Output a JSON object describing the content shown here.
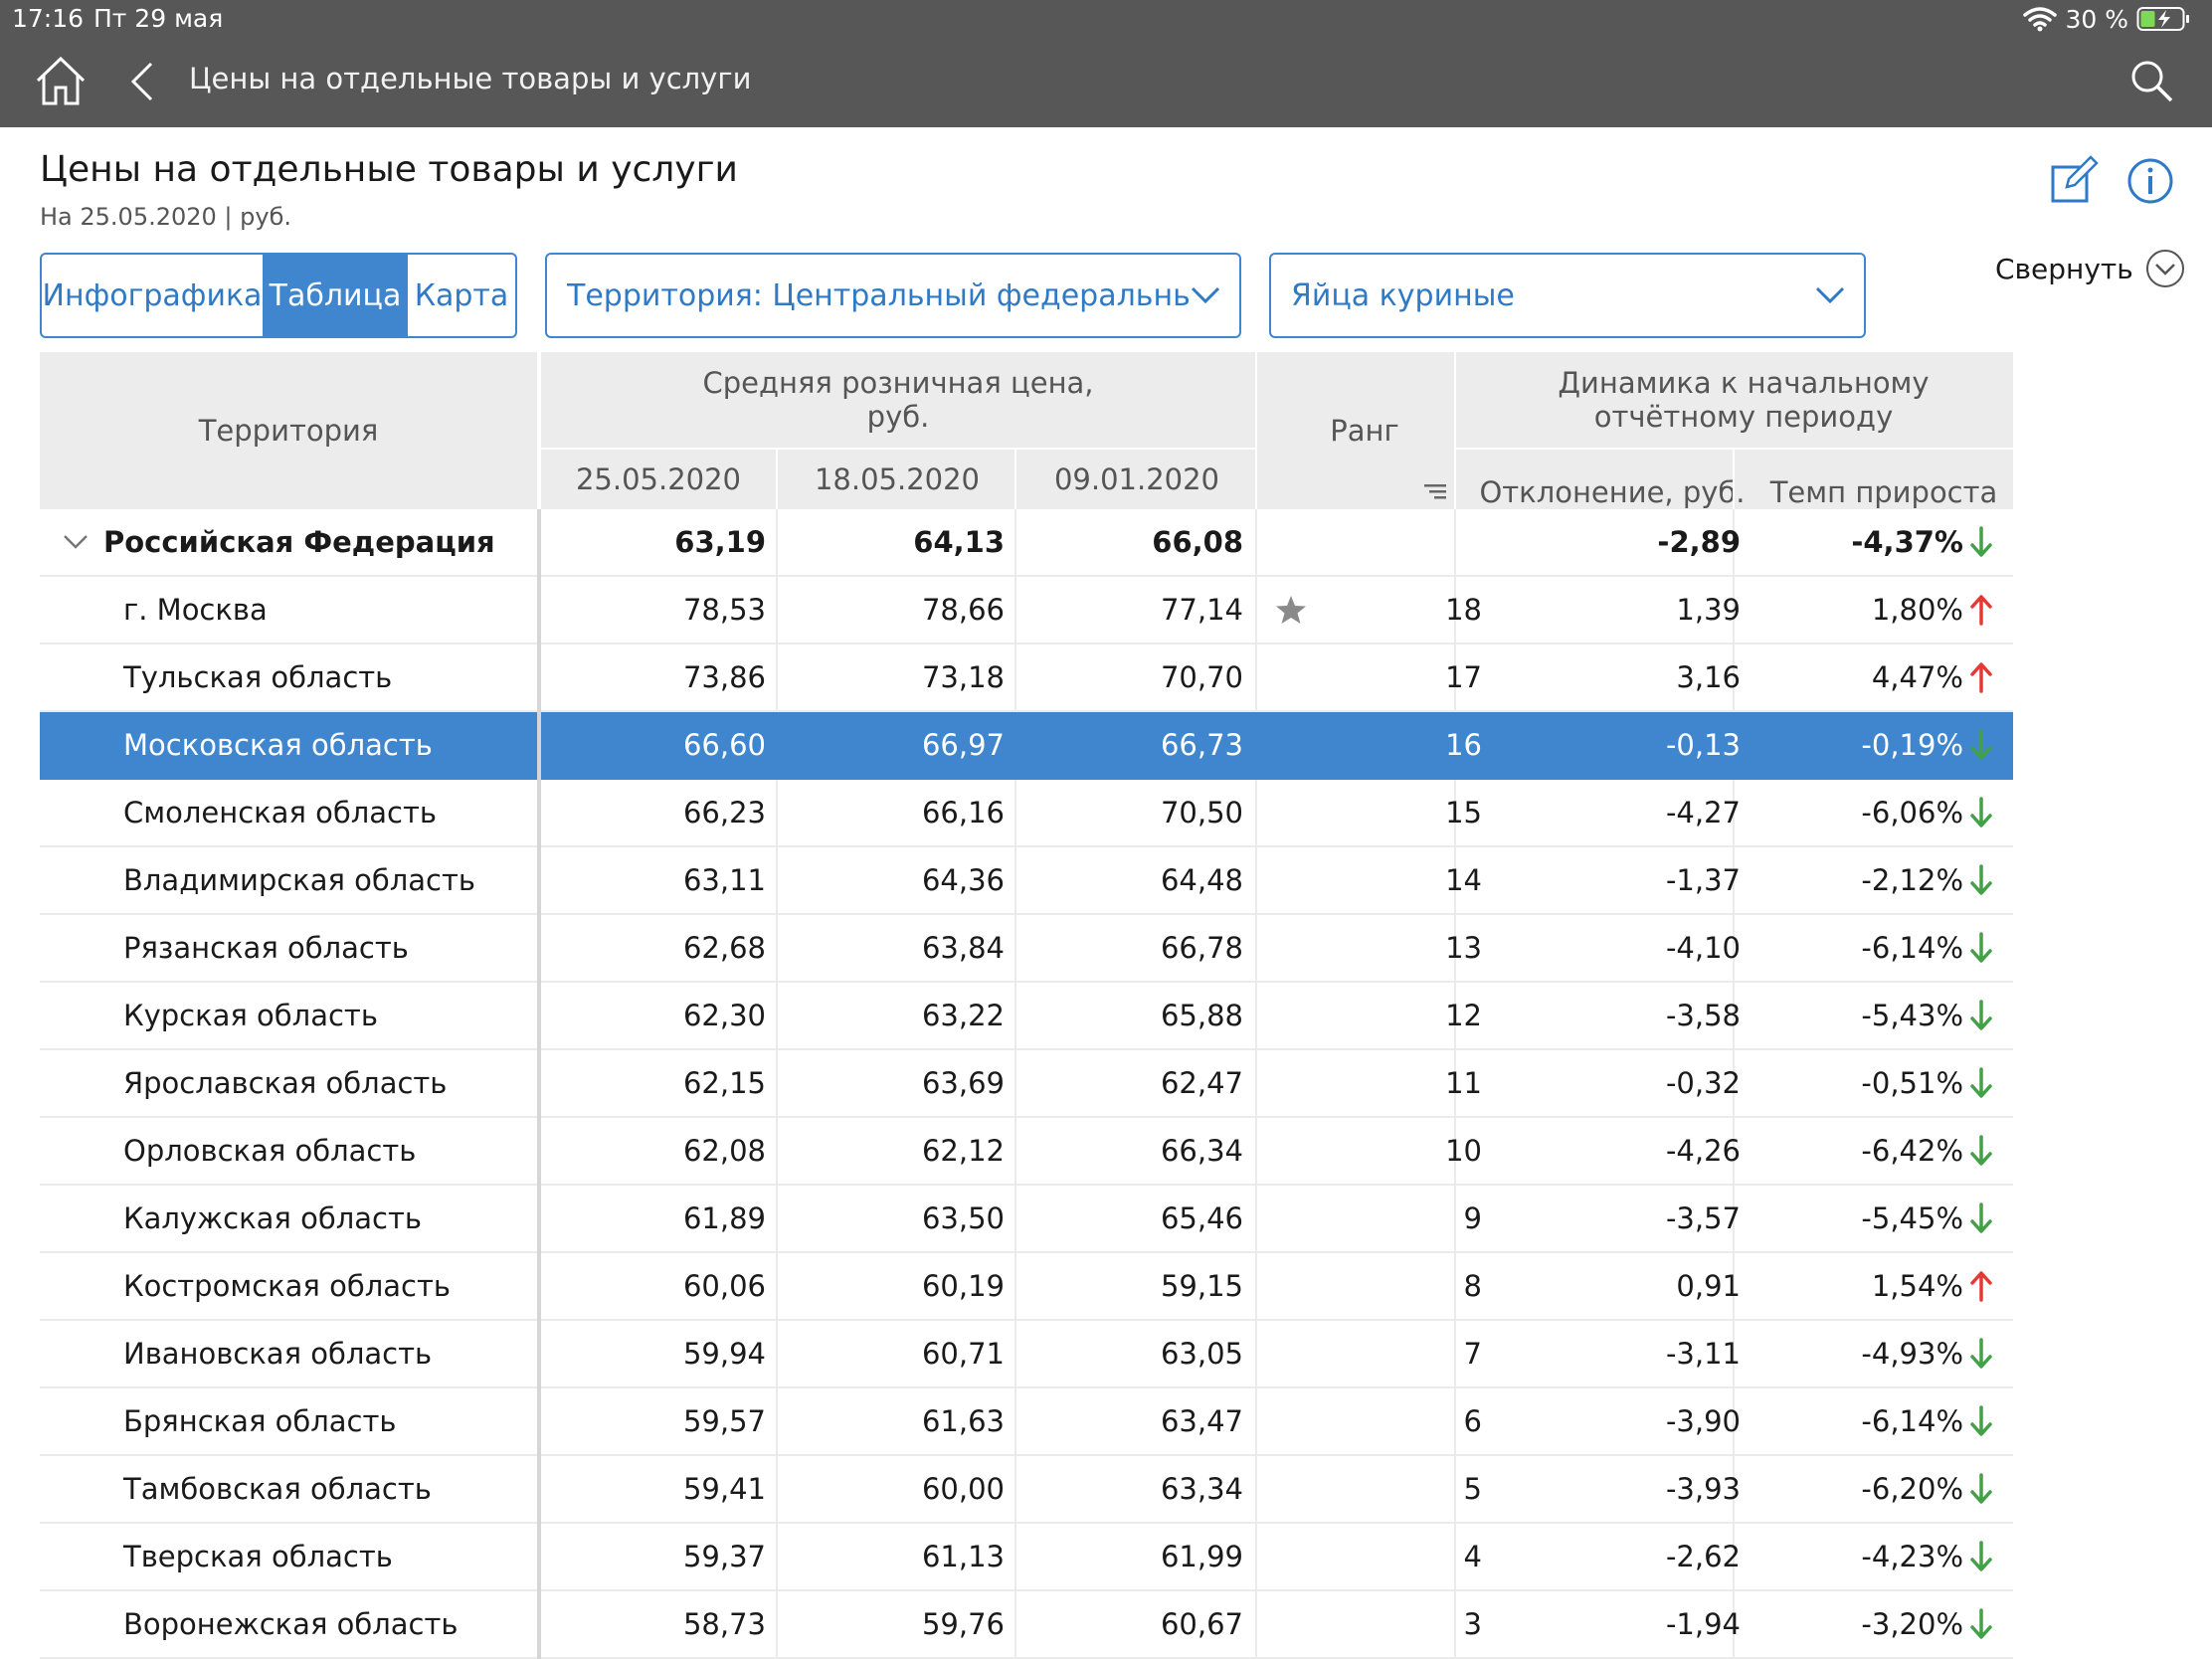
{
  "status": {
    "time": "17:16",
    "date": "Пт 29 мая",
    "battery": "30 %"
  },
  "nav": {
    "title": "Цены на отдельные товары и услуги"
  },
  "header": {
    "title": "Цены на отдельные товары и услуги",
    "subtitle": "На 25.05.2020 | руб.",
    "collapse_label": "Свернуть"
  },
  "tabs": [
    {
      "label": "Инфографика",
      "active": false
    },
    {
      "label": "Таблица",
      "active": true
    },
    {
      "label": "Карта",
      "active": false
    }
  ],
  "filters": {
    "territory": "Территория: Центральный федеральный ок",
    "product": "Яйца куриные"
  },
  "colors": {
    "accent": "#3f86cf",
    "up": "#e53935",
    "down": "#43a047"
  },
  "table": {
    "headers": {
      "territory": "Территория",
      "avg_price": "Средняя розничная цена, руб.",
      "dates": [
        "25.05.2020",
        "18.05.2020",
        "09.01.2020"
      ],
      "rank": "Ранг",
      "dynamics": "Динамика к начальному отчётному периоду",
      "deviation": "Отклонение, руб.",
      "growth": "Темп прироста"
    },
    "rows": [
      {
        "name": "Российская Федерация",
        "p1": "63,19",
        "p2": "64,13",
        "p3": "66,08",
        "rank": "",
        "dev": "-2,89",
        "rate": "-4,37%",
        "dir": "down",
        "parent": true
      },
      {
        "name": "г. Москва",
        "p1": "78,53",
        "p2": "78,66",
        "p3": "77,14",
        "rank": "18",
        "dev": "1,39",
        "rate": "1,80%",
        "dir": "up",
        "star": true
      },
      {
        "name": "Тульская область",
        "p1": "73,86",
        "p2": "73,18",
        "p3": "70,70",
        "rank": "17",
        "dev": "3,16",
        "rate": "4,47%",
        "dir": "up"
      },
      {
        "name": "Московская область",
        "p1": "66,60",
        "p2": "66,97",
        "p3": "66,73",
        "rank": "16",
        "dev": "-0,13",
        "rate": "-0,19%",
        "dir": "down",
        "selected": true
      },
      {
        "name": "Смоленская область",
        "p1": "66,23",
        "p2": "66,16",
        "p3": "70,50",
        "rank": "15",
        "dev": "-4,27",
        "rate": "-6,06%",
        "dir": "down"
      },
      {
        "name": "Владимирская область",
        "p1": "63,11",
        "p2": "64,36",
        "p3": "64,48",
        "rank": "14",
        "dev": "-1,37",
        "rate": "-2,12%",
        "dir": "down"
      },
      {
        "name": "Рязанская область",
        "p1": "62,68",
        "p2": "63,84",
        "p3": "66,78",
        "rank": "13",
        "dev": "-4,10",
        "rate": "-6,14%",
        "dir": "down"
      },
      {
        "name": "Курская область",
        "p1": "62,30",
        "p2": "63,22",
        "p3": "65,88",
        "rank": "12",
        "dev": "-3,58",
        "rate": "-5,43%",
        "dir": "down"
      },
      {
        "name": "Ярославская область",
        "p1": "62,15",
        "p2": "63,69",
        "p3": "62,47",
        "rank": "11",
        "dev": "-0,32",
        "rate": "-0,51%",
        "dir": "down"
      },
      {
        "name": "Орловская область",
        "p1": "62,08",
        "p2": "62,12",
        "p3": "66,34",
        "rank": "10",
        "dev": "-4,26",
        "rate": "-6,42%",
        "dir": "down"
      },
      {
        "name": "Калужская область",
        "p1": "61,89",
        "p2": "63,50",
        "p3": "65,46",
        "rank": "9",
        "dev": "-3,57",
        "rate": "-5,45%",
        "dir": "down"
      },
      {
        "name": "Костромская область",
        "p1": "60,06",
        "p2": "60,19",
        "p3": "59,15",
        "rank": "8",
        "dev": "0,91",
        "rate": "1,54%",
        "dir": "up"
      },
      {
        "name": "Ивановская область",
        "p1": "59,94",
        "p2": "60,71",
        "p3": "63,05",
        "rank": "7",
        "dev": "-3,11",
        "rate": "-4,93%",
        "dir": "down"
      },
      {
        "name": "Брянская область",
        "p1": "59,57",
        "p2": "61,63",
        "p3": "63,47",
        "rank": "6",
        "dev": "-3,90",
        "rate": "-6,14%",
        "dir": "down"
      },
      {
        "name": "Тамбовская область",
        "p1": "59,41",
        "p2": "60,00",
        "p3": "63,34",
        "rank": "5",
        "dev": "-3,93",
        "rate": "-6,20%",
        "dir": "down"
      },
      {
        "name": "Тверская область",
        "p1": "59,37",
        "p2": "61,13",
        "p3": "61,99",
        "rank": "4",
        "dev": "-2,62",
        "rate": "-4,23%",
        "dir": "down"
      },
      {
        "name": "Воронежская область",
        "p1": "58,73",
        "p2": "59,76",
        "p3": "60,67",
        "rank": "3",
        "dev": "-1,94",
        "rate": "-3,20%",
        "dir": "down"
      }
    ]
  }
}
